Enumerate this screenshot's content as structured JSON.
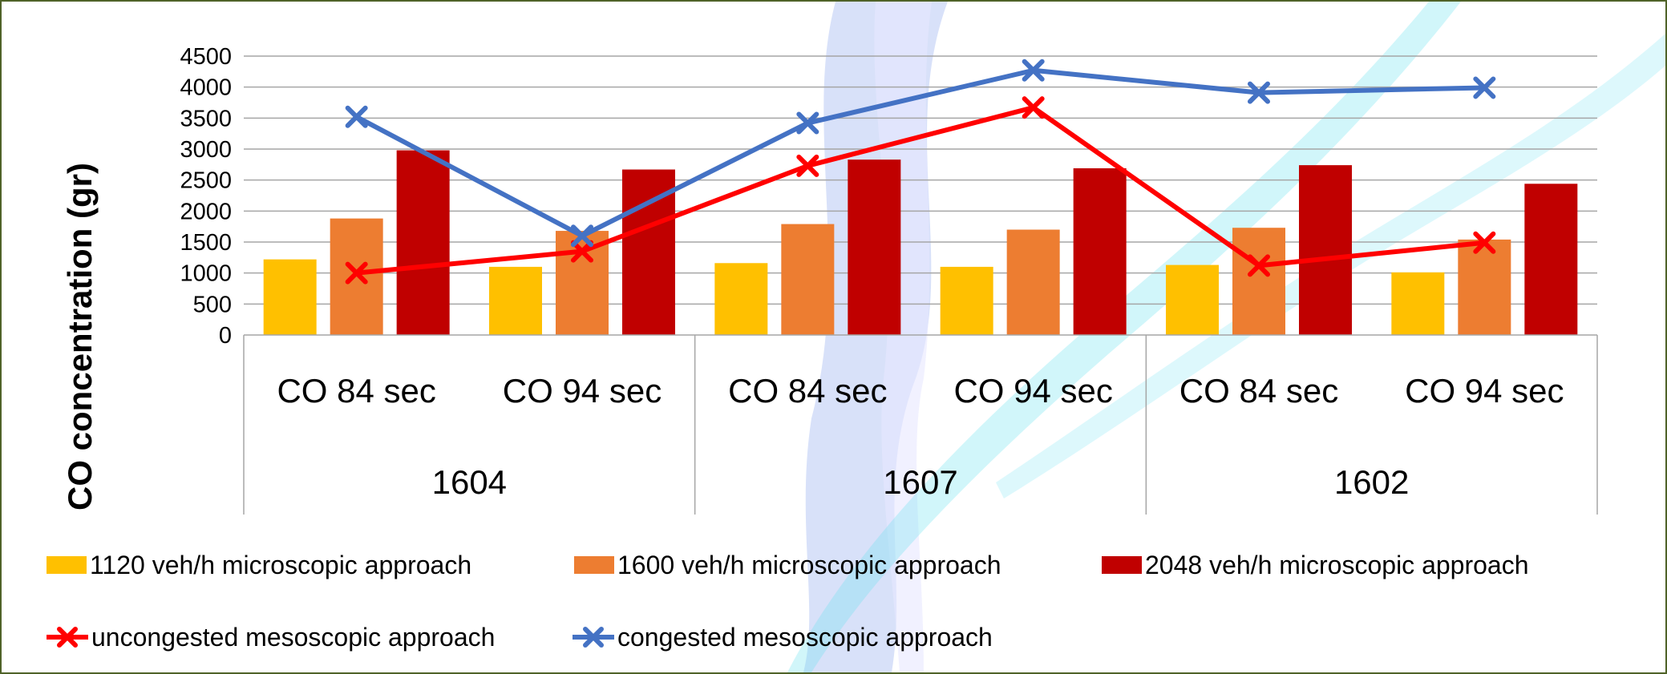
{
  "chart_data": {
    "type": "bar",
    "ylabel": "CO concentration (gr)",
    "ylim": [
      0,
      4500
    ],
    "yticks": [
      0,
      500,
      1000,
      1500,
      2000,
      2500,
      3000,
      3500,
      4000,
      4500
    ],
    "grid": true,
    "legend_position": "bottom",
    "groups": [
      "1604",
      "1607",
      "1602"
    ],
    "categories": [
      "CO 84 sec",
      "CO 94 sec",
      "CO 84 sec",
      "CO 94 sec",
      "CO 84 sec",
      "CO 94 sec"
    ],
    "bar_series": [
      {
        "name": "1120 veh/h microscopic approach",
        "color": "#ffc000",
        "values": [
          1220,
          1100,
          1160,
          1100,
          1130,
          1010
        ]
      },
      {
        "name": "1600 veh/h microscopic approach",
        "color": "#ed7d31",
        "values": [
          1880,
          1680,
          1790,
          1700,
          1730,
          1540
        ]
      },
      {
        "name": "2048 veh/h microscopic approach",
        "color": "#c00000",
        "values": [
          2980,
          2670,
          2830,
          2690,
          2740,
          2440
        ]
      }
    ],
    "line_series": [
      {
        "name": "uncongested mesoscopic approach",
        "color": "#ff0000",
        "values": [
          1000,
          1350,
          2730,
          3670,
          1120,
          1490
        ]
      },
      {
        "name": "congested mesoscopic approach",
        "color": "#4472c4",
        "values": [
          3520,
          1600,
          3420,
          4270,
          3910,
          3990
        ]
      }
    ]
  }
}
